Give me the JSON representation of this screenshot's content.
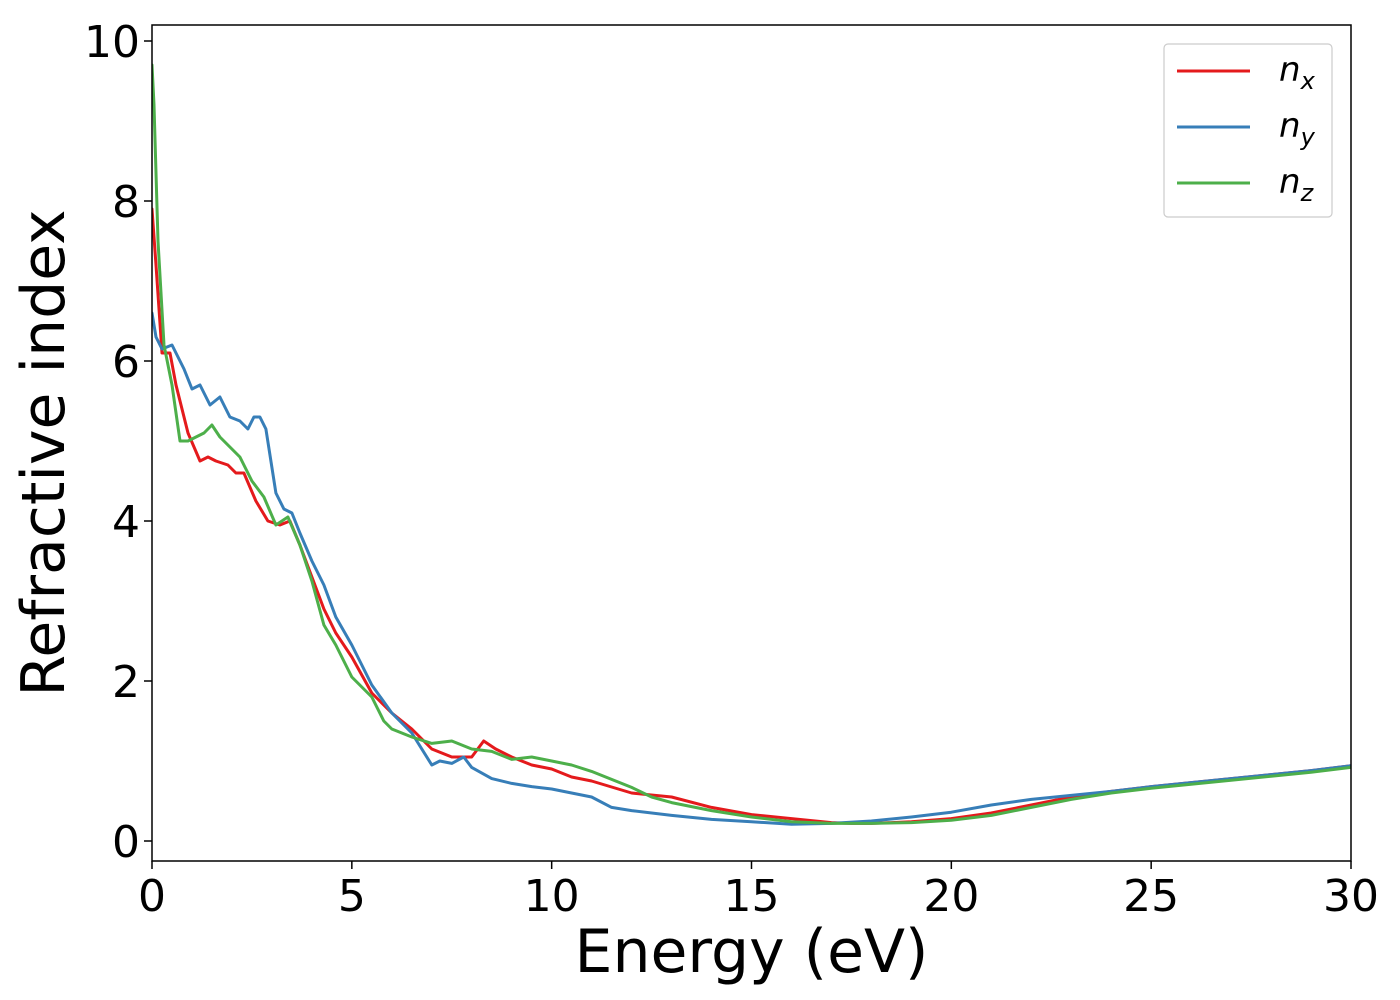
{
  "chart_data": {
    "type": "line",
    "title": "",
    "xlabel": "Energy (eV)",
    "ylabel": "Refractive index",
    "xlim": [
      0,
      30
    ],
    "ylim": [
      -0.25,
      10.2
    ],
    "xticks": [
      0,
      5,
      10,
      15,
      20,
      25,
      30
    ],
    "yticks": [
      0,
      2,
      4,
      6,
      8,
      10
    ],
    "grid": false,
    "legend_position": "top-right",
    "series": [
      {
        "name": "n",
        "subscript": "x",
        "color": "#e41a1c",
        "x": [
          0.0,
          0.1,
          0.25,
          0.45,
          0.6,
          0.9,
          1.2,
          1.4,
          1.6,
          1.9,
          2.1,
          2.3,
          2.6,
          2.9,
          3.2,
          3.45,
          3.7,
          4.0,
          4.3,
          4.6,
          5.0,
          5.5,
          6.0,
          6.5,
          7.0,
          7.5,
          8.0,
          8.3,
          8.6,
          9.0,
          9.5,
          10.0,
          10.5,
          11.0,
          12.0,
          13.0,
          14.0,
          15.0,
          16.0,
          17.0,
          17.5,
          18.0,
          19.0,
          20.0,
          21.0,
          22.0,
          23.0,
          24.0,
          25.0,
          26.0,
          27.0,
          28.0,
          29.0,
          30.0
        ],
        "y": [
          7.9,
          7.2,
          6.1,
          6.1,
          5.7,
          5.1,
          4.75,
          4.8,
          4.75,
          4.7,
          4.6,
          4.6,
          4.25,
          4.0,
          3.95,
          4.0,
          3.7,
          3.3,
          2.9,
          2.6,
          2.3,
          1.85,
          1.6,
          1.4,
          1.15,
          1.05,
          1.05,
          1.25,
          1.15,
          1.05,
          0.95,
          0.9,
          0.8,
          0.75,
          0.6,
          0.55,
          0.42,
          0.33,
          0.28,
          0.23,
          0.22,
          0.22,
          0.24,
          0.28,
          0.35,
          0.45,
          0.55,
          0.62,
          0.68,
          0.73,
          0.78,
          0.83,
          0.88,
          0.94
        ]
      },
      {
        "name": "n",
        "subscript": "y",
        "color": "#377eb8",
        "x": [
          0.0,
          0.1,
          0.25,
          0.5,
          0.8,
          1.0,
          1.2,
          1.45,
          1.7,
          1.95,
          2.2,
          2.4,
          2.55,
          2.7,
          2.85,
          3.1,
          3.3,
          3.5,
          3.7,
          4.0,
          4.3,
          4.6,
          5.0,
          5.5,
          6.0,
          6.5,
          7.0,
          7.2,
          7.5,
          7.8,
          8.0,
          8.5,
          9.0,
          9.5,
          10.0,
          10.5,
          11.0,
          11.5,
          12.0,
          13.0,
          14.0,
          15.0,
          16.0,
          17.0,
          18.0,
          19.0,
          20.0,
          21.0,
          22.0,
          23.0,
          24.0,
          25.0,
          26.0,
          27.0,
          28.0,
          29.0,
          30.0
        ],
        "y": [
          6.6,
          6.3,
          6.15,
          6.2,
          5.9,
          5.65,
          5.7,
          5.45,
          5.55,
          5.3,
          5.25,
          5.15,
          5.3,
          5.3,
          5.15,
          4.35,
          4.15,
          4.1,
          3.85,
          3.5,
          3.2,
          2.8,
          2.45,
          1.95,
          1.6,
          1.35,
          0.95,
          1.0,
          0.97,
          1.05,
          0.92,
          0.78,
          0.72,
          0.68,
          0.65,
          0.6,
          0.55,
          0.42,
          0.38,
          0.32,
          0.27,
          0.24,
          0.21,
          0.22,
          0.25,
          0.3,
          0.36,
          0.45,
          0.52,
          0.57,
          0.62,
          0.68,
          0.73,
          0.78,
          0.83,
          0.88,
          0.94
        ]
      },
      {
        "name": "n",
        "subscript": "z",
        "color": "#4daf4a",
        "x": [
          0.0,
          0.05,
          0.15,
          0.3,
          0.5,
          0.7,
          0.9,
          1.1,
          1.3,
          1.5,
          1.7,
          1.9,
          2.2,
          2.5,
          2.8,
          3.1,
          3.4,
          3.7,
          4.0,
          4.3,
          4.6,
          5.0,
          5.5,
          5.8,
          6.0,
          6.5,
          7.0,
          7.5,
          8.0,
          8.5,
          9.0,
          9.5,
          10.0,
          10.5,
          11.0,
          11.5,
          12.0,
          12.5,
          13.0,
          14.0,
          15.0,
          16.0,
          17.0,
          18.0,
          19.0,
          20.0,
          21.0,
          22.0,
          23.0,
          24.0,
          25.0,
          26.0,
          27.0,
          28.0,
          29.0,
          30.0
        ],
        "y": [
          9.7,
          9.2,
          7.5,
          6.2,
          5.7,
          5.0,
          5.0,
          5.05,
          5.1,
          5.2,
          5.05,
          4.95,
          4.8,
          4.5,
          4.3,
          3.95,
          4.05,
          3.7,
          3.25,
          2.7,
          2.45,
          2.05,
          1.8,
          1.5,
          1.4,
          1.3,
          1.22,
          1.25,
          1.15,
          1.12,
          1.02,
          1.05,
          1.0,
          0.95,
          0.87,
          0.77,
          0.67,
          0.55,
          0.48,
          0.38,
          0.3,
          0.24,
          0.22,
          0.22,
          0.23,
          0.26,
          0.32,
          0.42,
          0.52,
          0.6,
          0.66,
          0.71,
          0.76,
          0.81,
          0.86,
          0.92
        ]
      }
    ]
  }
}
